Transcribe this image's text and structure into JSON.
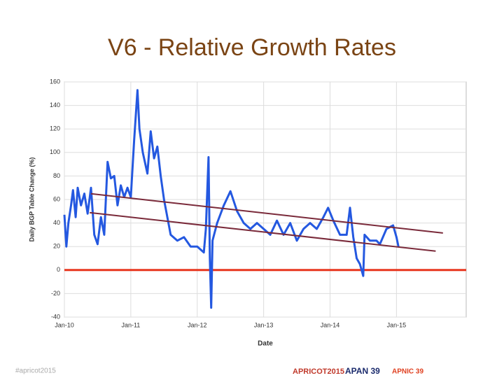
{
  "slide_title": "V6 - Relative Growth Rates",
  "footer": {
    "hashtag": "#apricot2015",
    "logo1": "APRICOT2015",
    "logo2": "APAN 39",
    "logo3": "APNIC 39"
  },
  "chart_data": {
    "type": "line",
    "x_label": "Date",
    "y_label": "Daily BGP Table Change (%)",
    "xlim": [
      2010,
      2016.05
    ],
    "ylim": [
      -40,
      160
    ],
    "xticks": [
      {
        "value": 2010,
        "label": "Jan-10"
      },
      {
        "value": 2011,
        "label": "Jan-11"
      },
      {
        "value": 2012,
        "label": "Jan-12"
      },
      {
        "value": 2013,
        "label": "Jan-13"
      },
      {
        "value": 2014,
        "label": "Jan-14"
      },
      {
        "value": 2015,
        "label": "Jan-15"
      }
    ],
    "yticks": [
      -40,
      -20,
      0,
      20,
      40,
      60,
      80,
      100,
      120,
      140,
      160
    ],
    "grid": true,
    "series": [
      {
        "color": "#2458e0",
        "x": [
          2010.0,
          2010.03,
          2010.06,
          2010.1,
          2010.13,
          2010.17,
          2010.2,
          2010.25,
          2010.3,
          2010.35,
          2010.4,
          2010.45,
          2010.5,
          2010.55,
          2010.6,
          2010.65,
          2010.7,
          2010.75,
          2010.8,
          2010.85,
          2010.9,
          2010.95,
          2011.0,
          2011.05,
          2011.1,
          2011.13,
          2011.18,
          2011.25,
          2011.3,
          2011.35,
          2011.4,
          2011.45,
          2011.5,
          2011.6,
          2011.7,
          2011.8,
          2011.9,
          2012.0,
          2012.1,
          2012.13,
          2012.17,
          2012.19,
          2012.21,
          2012.23,
          2012.3,
          2012.4,
          2012.5,
          2012.6,
          2012.7,
          2012.8,
          2012.9,
          2013.0,
          2013.1,
          2013.2,
          2013.3,
          2013.4,
          2013.5,
          2013.6,
          2013.7,
          2013.8,
          2013.9,
          2013.97,
          2014.05,
          2014.15,
          2014.25,
          2014.3,
          2014.35,
          2014.4,
          2014.45,
          2014.5,
          2014.52,
          2014.6,
          2014.7,
          2014.75,
          2014.85,
          2014.95,
          2015.0,
          2015.03
        ],
        "values": [
          47,
          20,
          40,
          55,
          68,
          45,
          70,
          55,
          65,
          48,
          70,
          30,
          22,
          45,
          30,
          92,
          78,
          80,
          55,
          72,
          62,
          70,
          62,
          110,
          153,
          120,
          100,
          82,
          118,
          95,
          105,
          80,
          60,
          30,
          25,
          28,
          20,
          20,
          15,
          35,
          96,
          10,
          -32,
          25,
          40,
          55,
          67,
          50,
          40,
          35,
          40,
          35,
          30,
          42,
          30,
          40,
          25,
          35,
          40,
          35,
          45,
          53,
          42,
          30,
          30,
          53,
          28,
          10,
          5,
          -5,
          30,
          25,
          25,
          22,
          35,
          38,
          28,
          20
        ]
      }
    ],
    "reference_line": {
      "value": 0,
      "color": "#e8361f"
    },
    "trend_lines": [
      {
        "color": "#7a2a3a",
        "x": [
          2010.4,
          2015.7
        ],
        "y": [
          64.9,
          31.5
        ]
      },
      {
        "color": "#7a2a3a",
        "x": [
          2010.38,
          2015.59
        ],
        "y": [
          48.8,
          16.1
        ]
      }
    ]
  }
}
